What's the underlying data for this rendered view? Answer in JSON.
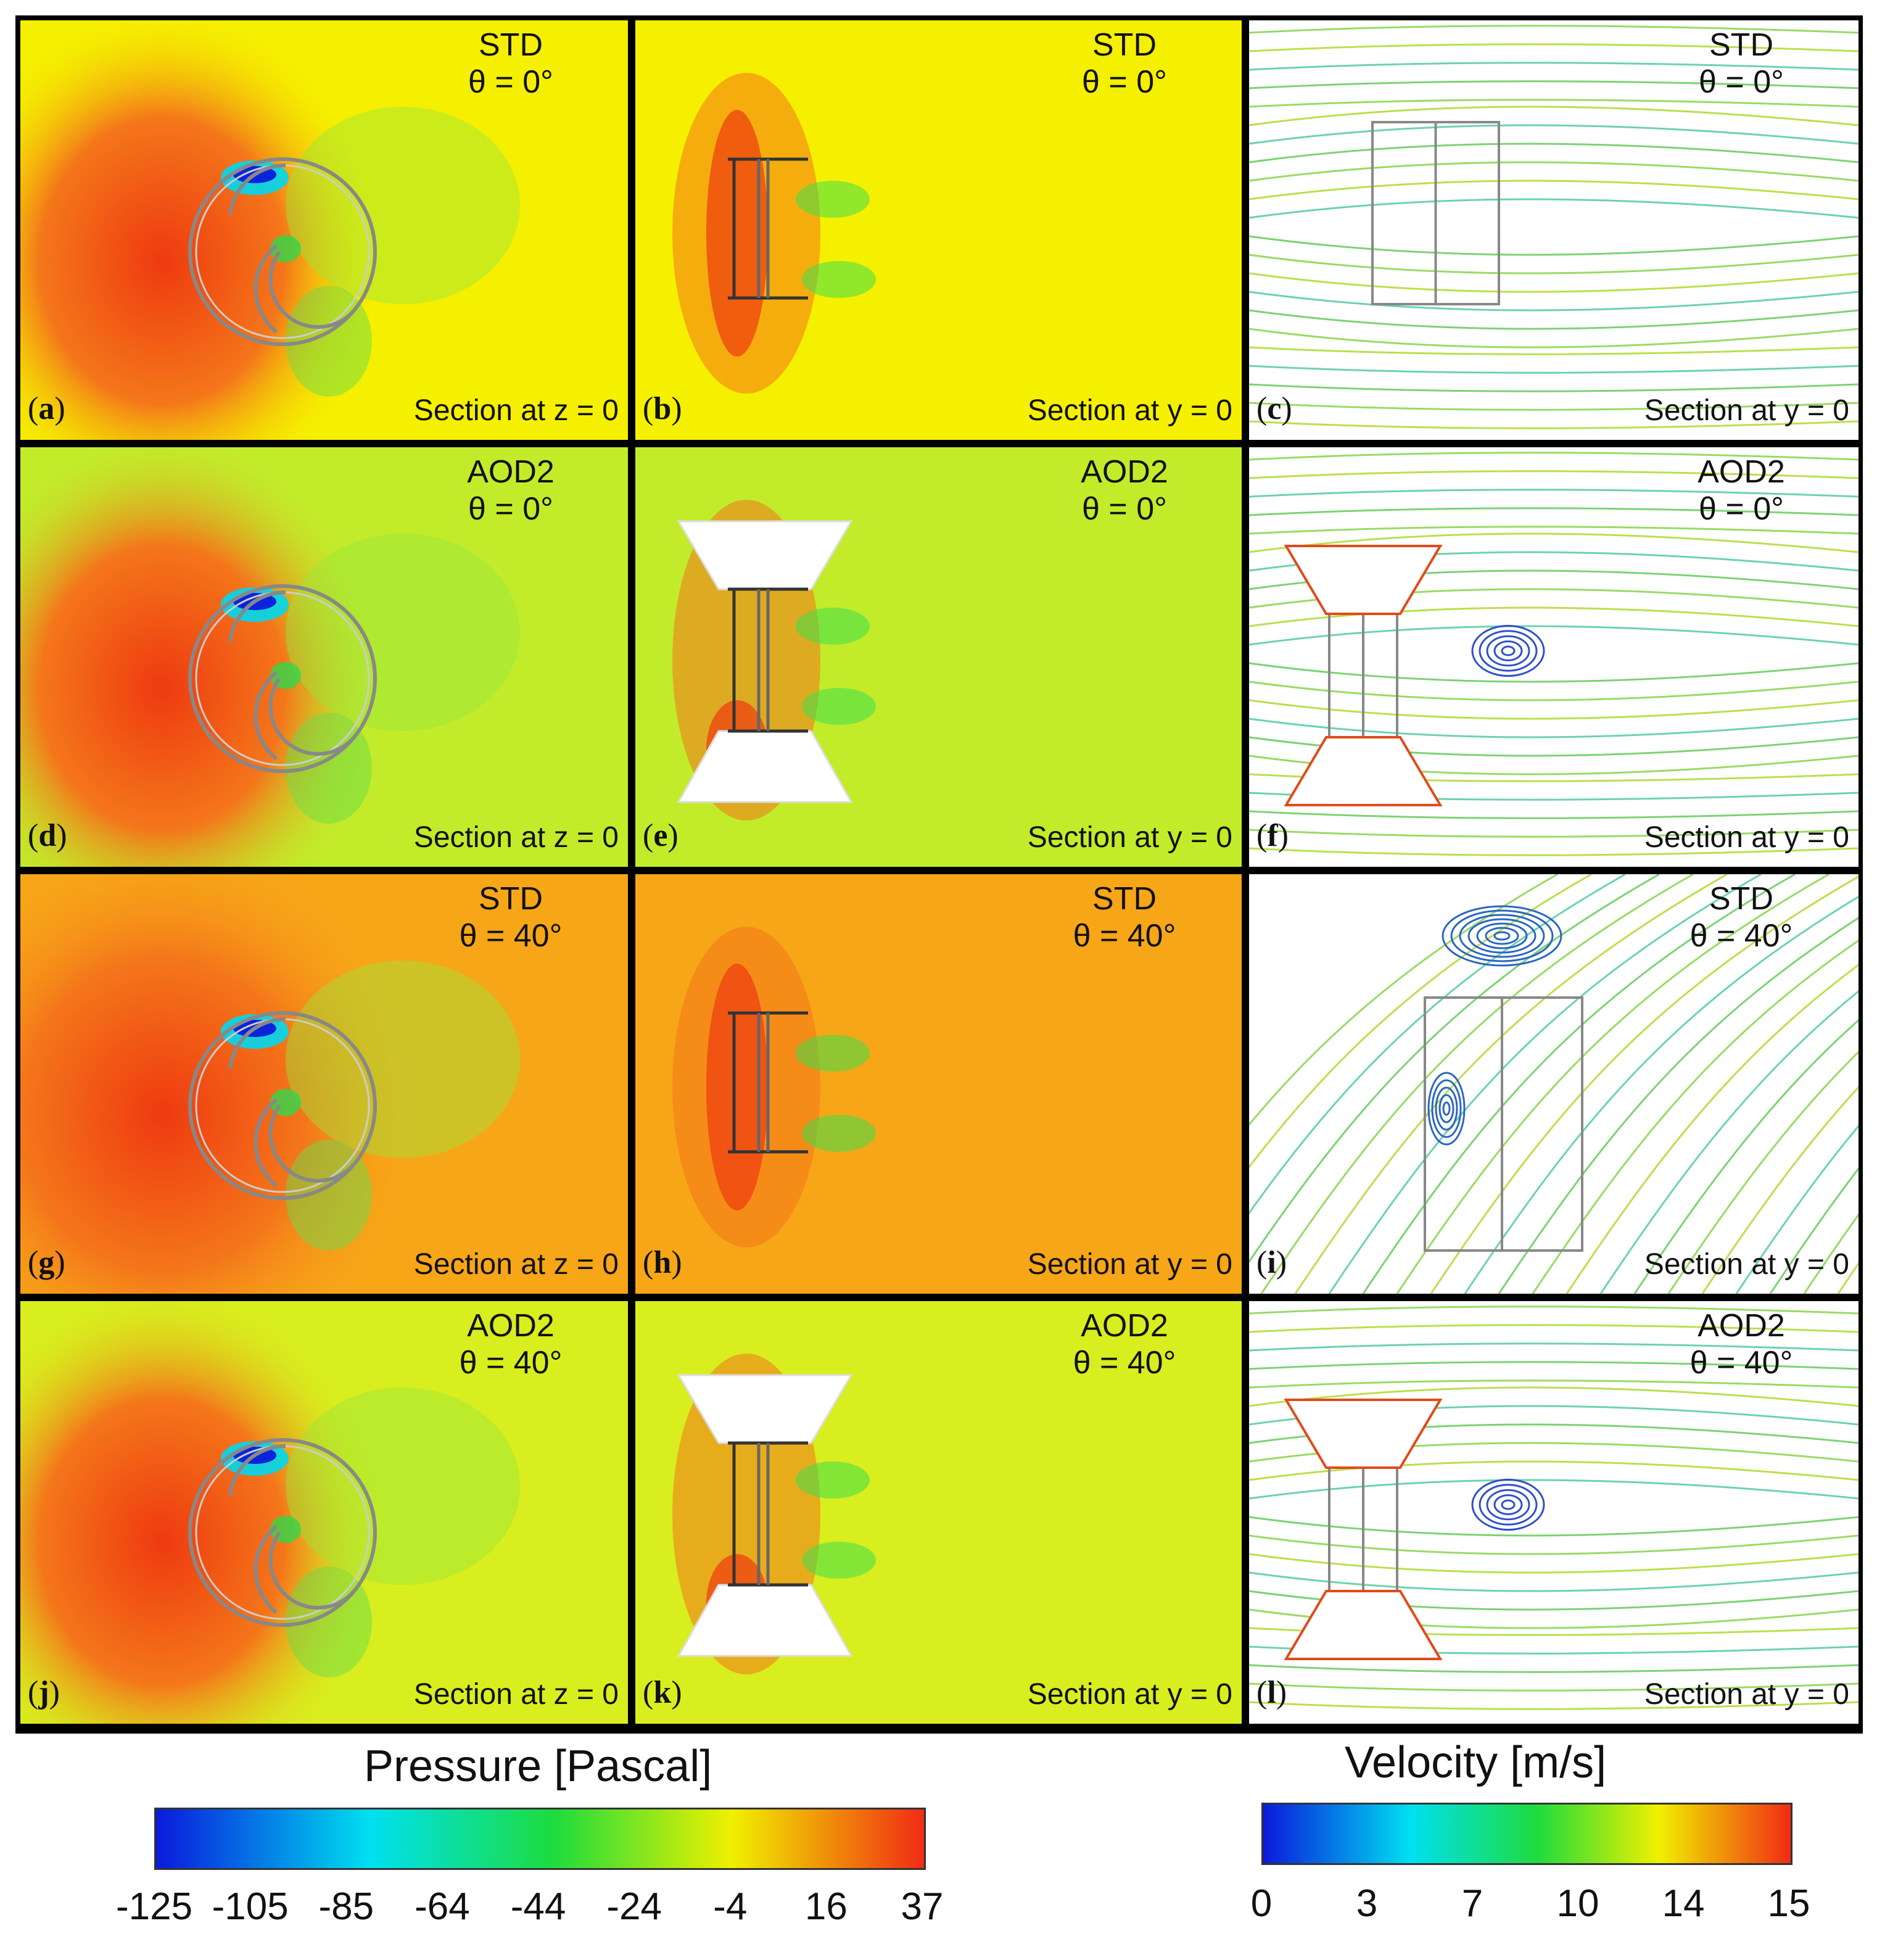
{
  "panels": [
    {
      "label": "a",
      "model": "STD",
      "angle": "θ = 0°",
      "section": "Section at z = 0",
      "view": "pressure-top"
    },
    {
      "label": "b",
      "model": "STD",
      "angle": "θ = 0°",
      "section": "Section at y = 0",
      "view": "pressure-side"
    },
    {
      "label": "c",
      "model": "STD",
      "angle": "θ = 0°",
      "section": "Section at y = 0",
      "view": "velocity"
    },
    {
      "label": "d",
      "model": "AOD2",
      "angle": "θ = 0°",
      "section": "Section at z = 0",
      "view": "pressure-top"
    },
    {
      "label": "e",
      "model": "AOD2",
      "angle": "θ = 0°",
      "section": "Section at y = 0",
      "view": "pressure-side"
    },
    {
      "label": "f",
      "model": "AOD2",
      "angle": "θ = 0°",
      "section": "Section at y = 0",
      "view": "velocity"
    },
    {
      "label": "g",
      "model": "STD",
      "angle": "θ = 40°",
      "section": "Section at z = 0",
      "view": "pressure-top"
    },
    {
      "label": "h",
      "model": "STD",
      "angle": "θ = 40°",
      "section": "Section at y = 0",
      "view": "pressure-side"
    },
    {
      "label": "i",
      "model": "STD",
      "angle": "θ = 40°",
      "section": "Section at y = 0",
      "view": "velocity"
    },
    {
      "label": "j",
      "model": "AOD2",
      "angle": "θ = 40°",
      "section": "Section at z = 0",
      "view": "pressure-top"
    },
    {
      "label": "k",
      "model": "AOD2",
      "angle": "θ = 40°",
      "section": "Section at y = 0",
      "view": "pressure-side"
    },
    {
      "label": "l",
      "model": "AOD2",
      "angle": "θ = 40°",
      "section": "Section at y = 0",
      "view": "velocity"
    }
  ],
  "colorbars": {
    "pressure": {
      "title": "Pressure [Pascal]",
      "ticks": [
        "-125",
        "-105",
        "-85",
        "-64",
        "-44",
        "-24",
        "-4",
        "16",
        "37"
      ]
    },
    "velocity": {
      "title": "Velocity [m/s]",
      "ticks": [
        "0",
        "3",
        "7",
        "10",
        "14",
        "15"
      ]
    }
  },
  "colors": {
    "pressure_ramp": [
      "#0a1adc",
      "#00e0f0",
      "#1edc3c",
      "#f0f000",
      "#f02c14"
    ],
    "velocity_ramp": [
      "#0a1adc",
      "#00e0f0",
      "#1edc3c",
      "#f0f000",
      "#f02c14"
    ],
    "std_0_bg": "#f5f000",
    "aod2_0_bg": "#c2ec2a",
    "std_40_bg": "#f7a618",
    "aod2_40_bg": "#d8ee1e"
  }
}
